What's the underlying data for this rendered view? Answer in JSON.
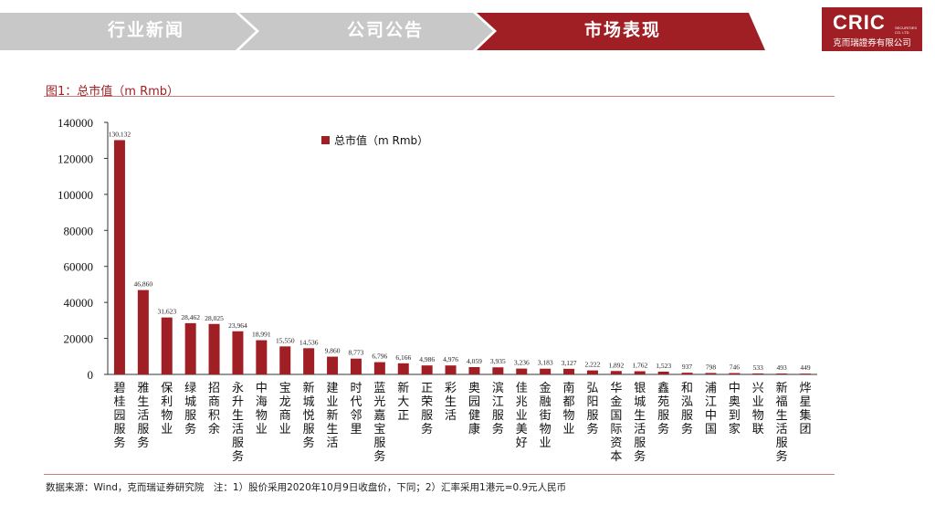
{
  "tabs": [
    {
      "label": "行业新闻",
      "active": false
    },
    {
      "label": "公司公告",
      "active": false
    },
    {
      "label": "市场表现",
      "active": true
    }
  ],
  "logo": {
    "brand": "CRIC",
    "small": "SECURITIES CO. LTD",
    "company": "克而瑞證券有限公司"
  },
  "figure_title": "图1：总市值（m Rmb）",
  "source_note": "数据来源：Wind，克而瑞证券研究院　注：1）股价采用2020年10月9日收盘价，下同；2）汇率采用1港元=0.9元人民币",
  "colors": {
    "bar": "#a01f24",
    "tab_active": "#a01f24",
    "tab_inactive": "#c8c8c8"
  },
  "chart_data": {
    "type": "bar",
    "title": "",
    "xlabel": "",
    "ylabel": "",
    "ylim": [
      0,
      140000
    ],
    "yticks": [
      "0",
      "20000",
      "40000",
      "60000",
      "80000",
      "100000",
      "120000",
      "140000"
    ],
    "legend_position": "top-center",
    "grid": false,
    "categories": [
      "碧桂园服务",
      "雅生活服务",
      "保利物业",
      "绿城服务",
      "招商积余",
      "永升生活服务",
      "中海物业",
      "宝龙商业",
      "新城悦服务",
      "建业新生活",
      "时代邻里",
      "蓝光嘉宝服务",
      "新大正",
      "正荣服务",
      "彩生活",
      "奥园健康",
      "滨江服务",
      "佳兆业美好",
      "金融街物业",
      "南都物业",
      "弘阳服务",
      "华金国际资本",
      "银城生活服务",
      "鑫苑服务",
      "和泓服务",
      "浦江中国",
      "中奥到家",
      "兴业物联",
      "新福生活服务",
      "烨星集团"
    ],
    "series": [
      {
        "name": "总市值（m Rmb）",
        "values": [
          130132,
          46860,
          31623,
          28462,
          28025,
          23964,
          18991,
          15550,
          14536,
          9860,
          8773,
          6796,
          6166,
          4986,
          4976,
          4059,
          3935,
          3236,
          3183,
          3127,
          2222,
          1892,
          1762,
          1523,
          937,
          798,
          746,
          533,
          493,
          449
        ],
        "labels": [
          "130,132",
          "46,860",
          "31,623",
          "28,462",
          "28,025",
          "23,964",
          "18,991",
          "15,550",
          "14,536",
          "9,860",
          "8,773",
          "6,796",
          "6,166",
          "4,986",
          "4,976",
          "4,059",
          "3,935",
          "3,236",
          "3,183",
          "3,127",
          "2,222",
          "1,892",
          "1,762",
          "1,523",
          "937",
          "798",
          "746",
          "533",
          "493",
          "449"
        ]
      }
    ]
  }
}
